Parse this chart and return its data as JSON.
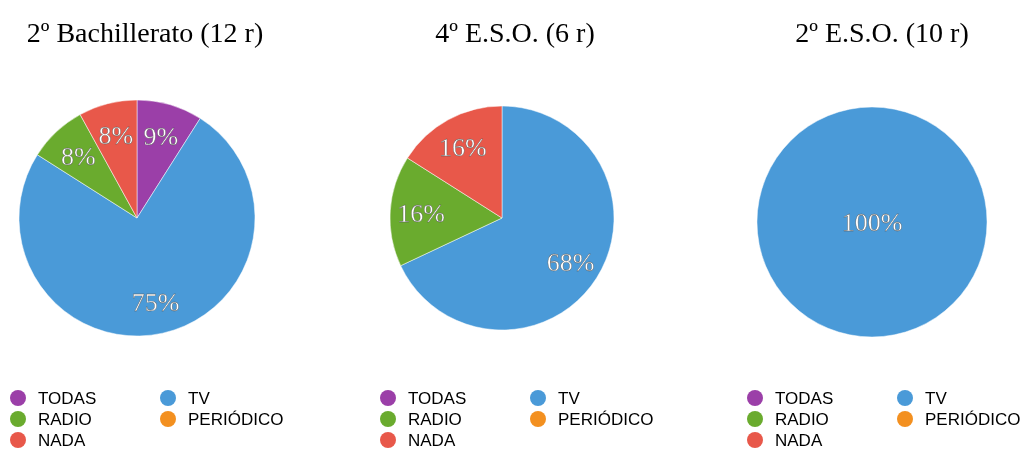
{
  "chart_data": [
    {
      "type": "pie",
      "title": "2º Bachillerato (12 r)",
      "categories": [
        "TODAS",
        "TV",
        "RADIO",
        "PERIÓDICO",
        "NADA"
      ],
      "values": [
        9,
        75,
        8,
        0,
        8
      ],
      "value_labels": [
        "9%",
        "75%",
        "8%",
        null,
        "8%"
      ],
      "colors": [
        "#9b3fa8",
        "#4a9ad8",
        "#6aab2e",
        "#f39020",
        "#e8584a"
      ],
      "legend": "bottom"
    },
    {
      "type": "pie",
      "title": "4º E.S.O. (6 r)",
      "categories": [
        "TODAS",
        "TV",
        "RADIO",
        "PERIÓDICO",
        "NADA"
      ],
      "values": [
        0,
        68,
        16,
        0,
        16
      ],
      "value_labels": [
        null,
        "68%",
        "16%",
        null,
        "16%"
      ],
      "colors": [
        "#9b3fa8",
        "#4a9ad8",
        "#6aab2e",
        "#f39020",
        "#e8584a"
      ],
      "legend": "bottom"
    },
    {
      "type": "pie",
      "title": "2º E.S.O. (10 r)",
      "categories": [
        "TODAS",
        "TV",
        "RADIO",
        "PERIÓDICO",
        "NADA"
      ],
      "values": [
        0,
        100,
        0,
        0,
        0
      ],
      "value_labels": [
        null,
        "100%",
        null,
        null,
        null
      ],
      "colors": [
        "#9b3fa8",
        "#4a9ad8",
        "#6aab2e",
        "#f39020",
        "#e8584a"
      ],
      "legend": "bottom"
    }
  ]
}
